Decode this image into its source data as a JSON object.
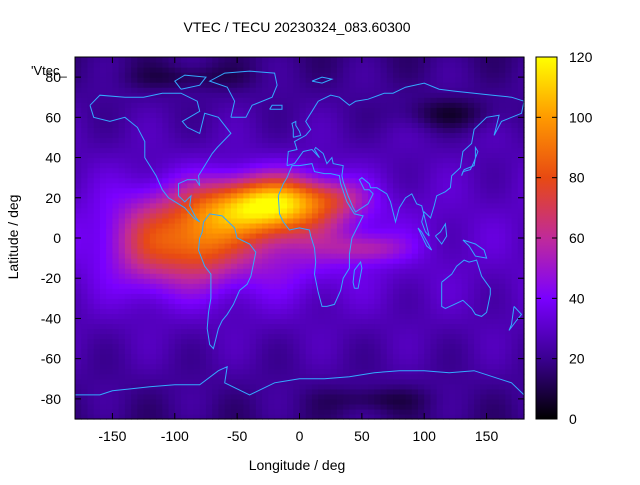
{
  "chart_data": {
    "type": "heatmap",
    "title": "VTEC / TECU 20230324_083.60300",
    "xlabel": "Longitude / deg",
    "ylabel": "Latitude / deg",
    "legend_key": "'Vtec_",
    "xlim": [
      -180,
      180
    ],
    "ylim": [
      -90,
      90
    ],
    "x_ticks": [
      -150,
      -100,
      -50,
      0,
      50,
      100,
      150
    ],
    "y_ticks": [
      -80,
      -60,
      -40,
      -20,
      0,
      20,
      40,
      60,
      80
    ],
    "colorbar": {
      "range": [
        0,
        120
      ],
      "ticks": [
        0,
        20,
        40,
        60,
        80,
        100,
        120
      ],
      "palette": [
        "#000000",
        "#3a0090",
        "#7a00ff",
        "#c02a9a",
        "#e84a12",
        "#ff9a00",
        "#ffff00"
      ]
    },
    "grid": false,
    "overlay": "coastlines",
    "overlay_color": "#33aaff",
    "features": [
      {
        "lon": -35,
        "lat": 15,
        "sx": 55,
        "sy": 14,
        "amp": 55
      },
      {
        "lon": -10,
        "lat": 20,
        "sx": 45,
        "sy": 12,
        "amp": 30
      },
      {
        "lon": -80,
        "lat": -3,
        "sx": 28,
        "sy": 18,
        "amp": 28
      },
      {
        "lon": -120,
        "lat": -3,
        "sx": 30,
        "sy": 22,
        "amp": 25
      },
      {
        "lon": 55,
        "lat": -5,
        "sx": 30,
        "sy": 7,
        "amp": 22
      },
      {
        "lon": 30,
        "lat": 20,
        "sx": 25,
        "sy": 8,
        "amp": 12
      }
    ],
    "background": {
      "base": 30,
      "equatorial_amp": 28,
      "equatorial_center_lon": -55,
      "equatorial_lon_width": 95,
      "equatorial_lat_width": 26
    }
  }
}
